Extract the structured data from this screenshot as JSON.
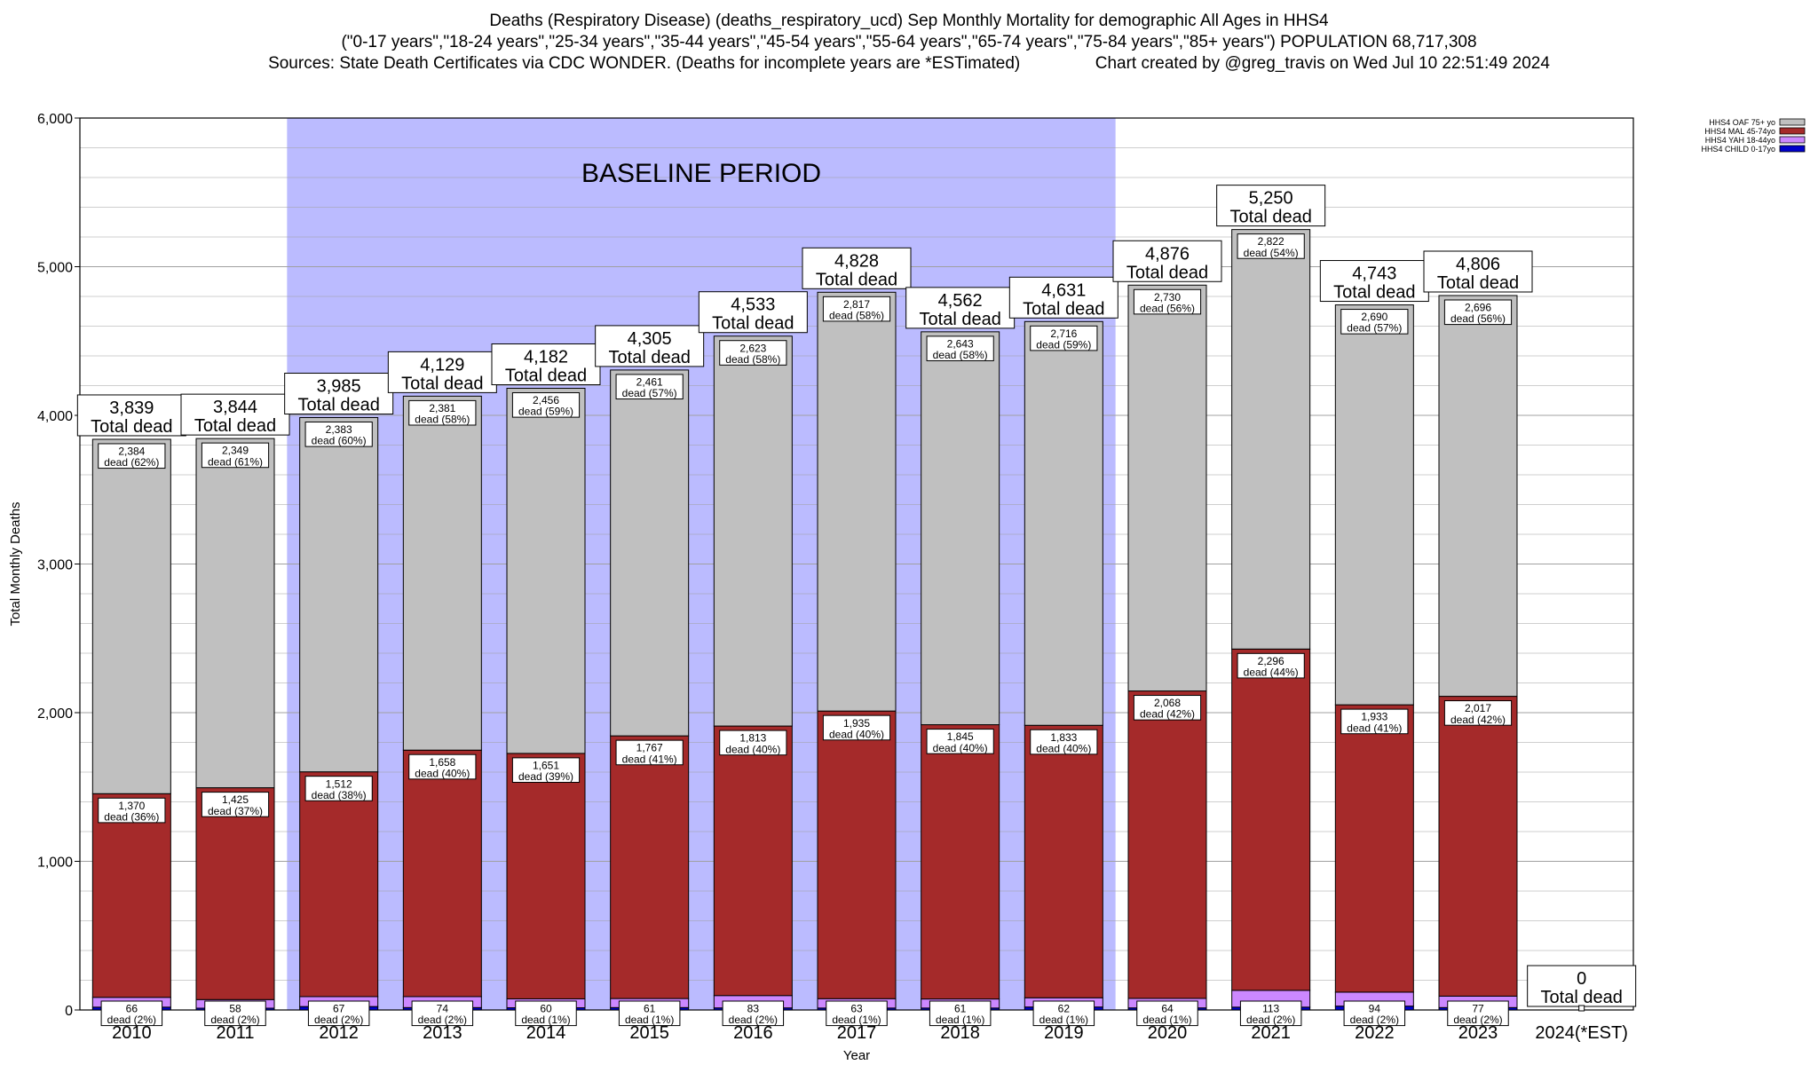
{
  "titles": {
    "line1": "Deaths (Respiratory Disease) (deaths_respiratory_ucd) Sep Monthly Mortality for demographic All Ages in HHS4",
    "line2": "(\"0-17 years\",\"18-24 years\",\"25-34 years\",\"35-44 years\",\"45-54 years\",\"55-64 years\",\"65-74 years\",\"75-84 years\",\"85+ years\") POPULATION 68,717,308",
    "line3": "Sources: State Death Certificates via CDC WONDER. (Deaths for incomplete years are *ESTimated)                Chart created by @greg_travis on Wed Jul 10 22:51:49 2024"
  },
  "colors": {
    "oaf": "#c0c0c0",
    "mal": "#a52a2a",
    "yah": "#cc88ff",
    "child": "#0000cc",
    "baseline": "#bbbbff"
  },
  "chart_data": {
    "type": "bar",
    "stacked": true,
    "xlabel": "Year",
    "ylabel": "Total Monthly Deaths",
    "ylim": [
      0,
      6000
    ],
    "yticks": [
      "0",
      "1,000",
      "2,000",
      "3,000",
      "4,000",
      "5,000",
      "6,000"
    ],
    "grid": true,
    "legend_position": "top-right",
    "categories": [
      "2010",
      "2011",
      "2012",
      "2013",
      "2014",
      "2015",
      "2016",
      "2017",
      "2018",
      "2019",
      "2020",
      "2021",
      "2022",
      "2023",
      "2024(*EST)"
    ],
    "series": [
      {
        "name": "HHS4 CHILD 0-17yo",
        "values": [
          19,
          12,
          23,
          16,
          15,
          16,
          14,
          13,
          13,
          20,
          14,
          19,
          26,
          16,
          0
        ]
      },
      {
        "name": "HHS4 YAH 18-44yo",
        "values": [
          66,
          58,
          67,
          74,
          60,
          61,
          83,
          63,
          61,
          62,
          64,
          113,
          94,
          77,
          0
        ]
      },
      {
        "name": "HHS4 MAL 45-74yo",
        "values": [
          1370,
          1425,
          1512,
          1658,
          1651,
          1767,
          1813,
          1935,
          1845,
          1833,
          2068,
          2296,
          1933,
          2017,
          0
        ]
      },
      {
        "name": "HHS4 OAF 75+ yo",
        "values": [
          2384,
          2349,
          2383,
          2381,
          2456,
          2461,
          2623,
          2817,
          2643,
          2716,
          2730,
          2822,
          2690,
          2696,
          0
        ]
      }
    ],
    "totals": [
      "3,839",
      "3,844",
      "3,985",
      "4,129",
      "4,182",
      "4,305",
      "4,533",
      "4,828",
      "4,562",
      "4,631",
      "4,876",
      "5,250",
      "4,743",
      "4,806",
      "0"
    ],
    "total_caption": "Total dead",
    "segment_labels": {
      "oaf": [
        "2,384",
        "2,349",
        "2,383",
        "2,381",
        "2,456",
        "2,461",
        "2,623",
        "2,817",
        "2,643",
        "2,716",
        "2,730",
        "2,822",
        "2,690",
        "2,696"
      ],
      "oaf_pct": [
        "dead (62%)",
        "dead (61%)",
        "dead (60%)",
        "dead (58%)",
        "dead (59%)",
        "dead (57%)",
        "dead (58%)",
        "dead (58%)",
        "dead (58%)",
        "dead (59%)",
        "dead (56%)",
        "dead (54%)",
        "dead (57%)",
        "dead (56%)"
      ],
      "mal": [
        "1,370",
        "1,425",
        "1,512",
        "1,658",
        "1,651",
        "1,767",
        "1,813",
        "1,935",
        "1,845",
        "1,833",
        "2,068",
        "2,296",
        "1,933",
        "2,017"
      ],
      "mal_pct": [
        "dead (36%)",
        "dead (37%)",
        "dead (38%)",
        "dead (40%)",
        "dead (39%)",
        "dead (41%)",
        "dead (40%)",
        "dead (40%)",
        "dead (40%)",
        "dead (40%)",
        "dead (42%)",
        "dead (44%)",
        "dead (41%)",
        "dead (42%)"
      ],
      "yah": [
        "66",
        "58",
        "67",
        "74",
        "60",
        "61",
        "83",
        "63",
        "61",
        "62",
        "64",
        "113",
        "94",
        "77"
      ],
      "yah_pct": [
        "dead (2%)",
        "dead (2%)",
        "dead (2%)",
        "dead (2%)",
        "dead (1%)",
        "dead (1%)",
        "dead (2%)",
        "dead (1%)",
        "dead (1%)",
        "dead (1%)",
        "dead (1%)",
        "dead (2%)",
        "dead (2%)",
        "dead (2%)"
      ]
    },
    "baseline": {
      "label": "BASELINE PERIOD",
      "from": "2012",
      "to": "2019"
    }
  }
}
